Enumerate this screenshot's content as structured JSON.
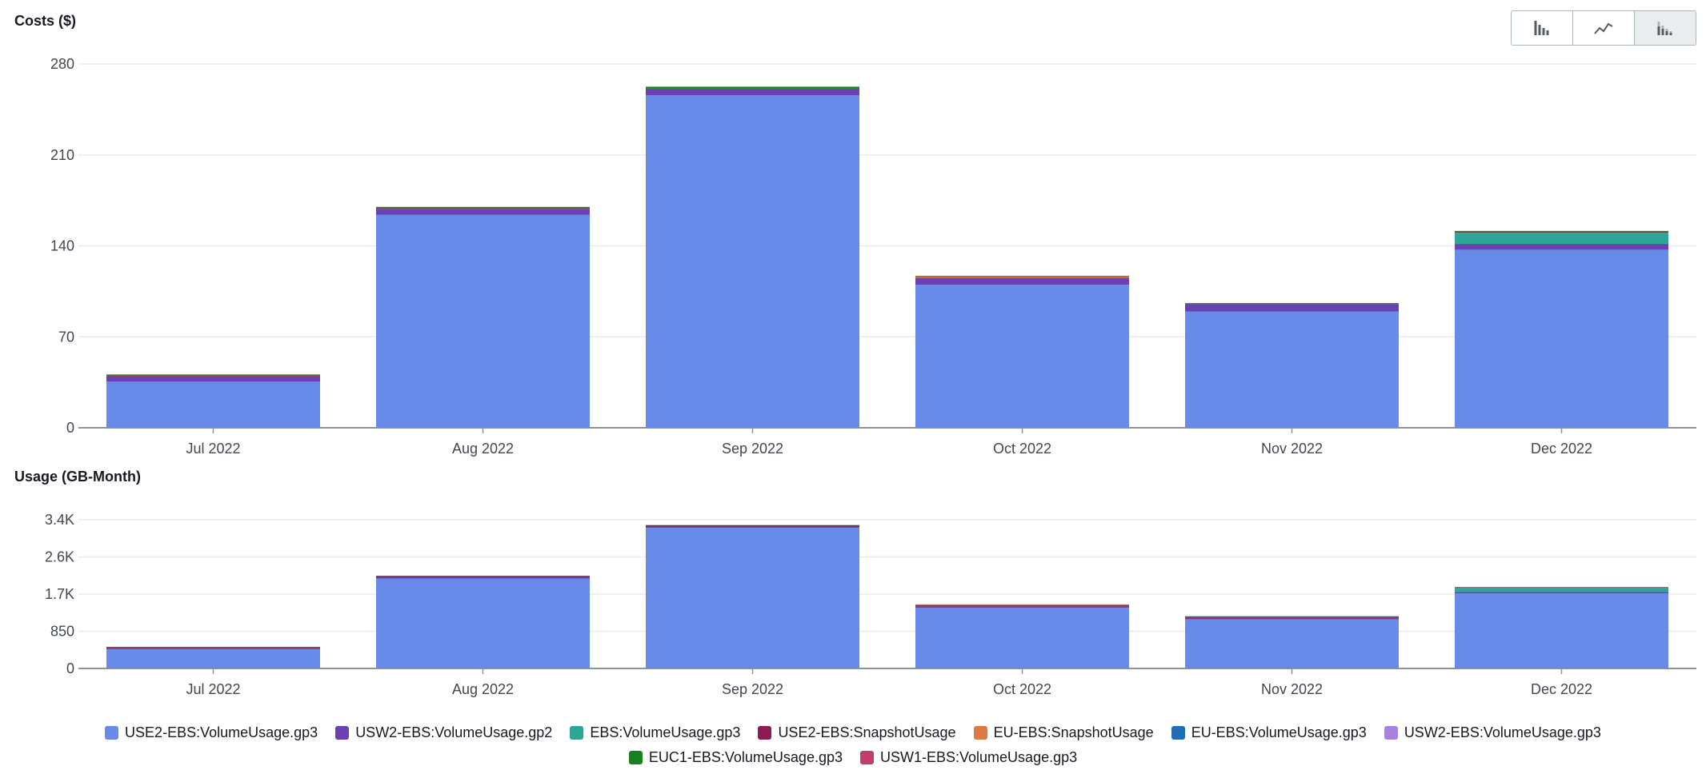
{
  "chart_data": [
    {
      "type": "bar",
      "stacked": true,
      "title": "Costs ($)",
      "categories": [
        "Jul 2022",
        "Aug 2022",
        "Sep 2022",
        "Oct 2022",
        "Nov 2022",
        "Dec 2022"
      ],
      "ylim": [
        0,
        280
      ],
      "yticks": [
        0,
        70,
        140,
        210,
        280
      ],
      "ytick_labels": [
        "0",
        "70",
        "140",
        "210",
        "280"
      ],
      "grid": true,
      "series": [
        {
          "name": "USE2-EBS:VolumeUsage.gp3",
          "color": "#688ae8",
          "values": [
            35.5,
            164,
            256,
            110,
            89.5,
            137
          ]
        },
        {
          "name": "USW2-EBS:VolumeUsage.gp2",
          "color": "#6b40b2",
          "values": [
            4,
            4.5,
            4.5,
            5,
            5,
            4.5
          ]
        },
        {
          "name": "EBS:VolumeUsage.gp3",
          "color": "#2ea597",
          "values": [
            0,
            0,
            0,
            0,
            0,
            8.5
          ]
        },
        {
          "name": "USE2-EBS:SnapshotUsage",
          "color": "#8c1d53",
          "values": [
            1,
            0.5,
            0.5,
            0.5,
            0.5,
            0.5
          ]
        },
        {
          "name": "EU-EBS:SnapshotUsage",
          "color": "#e07941",
          "values": [
            0,
            0,
            0,
            1,
            0,
            0
          ]
        },
        {
          "name": "EU-EBS:VolumeUsage.gp3",
          "color": "#1f6eb3",
          "values": [
            0,
            0,
            0,
            0,
            0.5,
            0
          ]
        },
        {
          "name": "USW2-EBS:VolumeUsage.gp3",
          "color": "#a783e1",
          "values": [
            0,
            0,
            0,
            0,
            0,
            0
          ]
        },
        {
          "name": "EUC1-EBS:VolumeUsage.gp3",
          "color": "#1a7f1f",
          "values": [
            0.5,
            1,
            1.5,
            0.5,
            0.5,
            1
          ]
        },
        {
          "name": "USW1-EBS:VolumeUsage.gp3",
          "color": "#c33d69",
          "values": [
            0,
            0,
            0,
            0,
            0,
            0
          ]
        }
      ]
    },
    {
      "type": "bar",
      "stacked": true,
      "title": "Usage (GB-Month)",
      "categories": [
        "Jul 2022",
        "Aug 2022",
        "Sep 2022",
        "Oct 2022",
        "Nov 2022",
        "Dec 2022"
      ],
      "ylim": [
        0,
        3400
      ],
      "yticks": [
        0,
        850,
        1700,
        2550,
        3400
      ],
      "ytick_labels": [
        "0",
        "850",
        "1.7K",
        "2.6K",
        "3.4K"
      ],
      "grid": true,
      "series": [
        {
          "name": "USE2-EBS:VolumeUsage.gp3",
          "color": "#688ae8",
          "values": [
            440,
            2055,
            3215,
            1385,
            1120,
            1715
          ]
        },
        {
          "name": "USW2-EBS:VolumeUsage.gp2",
          "color": "#6b40b2",
          "values": [
            20,
            30,
            30,
            35,
            40,
            30
          ]
        },
        {
          "name": "EBS:VolumeUsage.gp3",
          "color": "#2ea597",
          "values": [
            0,
            0,
            0,
            0,
            0,
            100
          ]
        },
        {
          "name": "USE2-EBS:SnapshotUsage",
          "color": "#8c1d53",
          "values": [
            30,
            30,
            30,
            30,
            25,
            10
          ]
        },
        {
          "name": "EU-EBS:SnapshotUsage",
          "color": "#e07941",
          "values": [
            0,
            0,
            0,
            10,
            0,
            0
          ]
        },
        {
          "name": "EU-EBS:VolumeUsage.gp3",
          "color": "#1f6eb3",
          "values": [
            0,
            0,
            0,
            0,
            5,
            0
          ]
        },
        {
          "name": "USW2-EBS:VolumeUsage.gp3",
          "color": "#a783e1",
          "values": [
            0,
            0,
            0,
            0,
            0,
            0
          ]
        },
        {
          "name": "EUC1-EBS:VolumeUsage.gp3",
          "color": "#1a7f1f",
          "values": [
            5,
            5,
            5,
            5,
            5,
            5
          ]
        },
        {
          "name": "USW1-EBS:VolumeUsage.gp3",
          "color": "#c33d69",
          "values": [
            0,
            0,
            0,
            0,
            0,
            0
          ]
        }
      ]
    }
  ],
  "toggle": {
    "buttons": [
      {
        "name": "bar-chart-view-button",
        "icon": "bar-chart-icon",
        "active": false
      },
      {
        "name": "line-chart-view-button",
        "icon": "line-chart-icon",
        "active": false
      },
      {
        "name": "stacked-bar-chart-view-button",
        "icon": "stacked-bar-chart-icon",
        "active": true
      }
    ]
  }
}
